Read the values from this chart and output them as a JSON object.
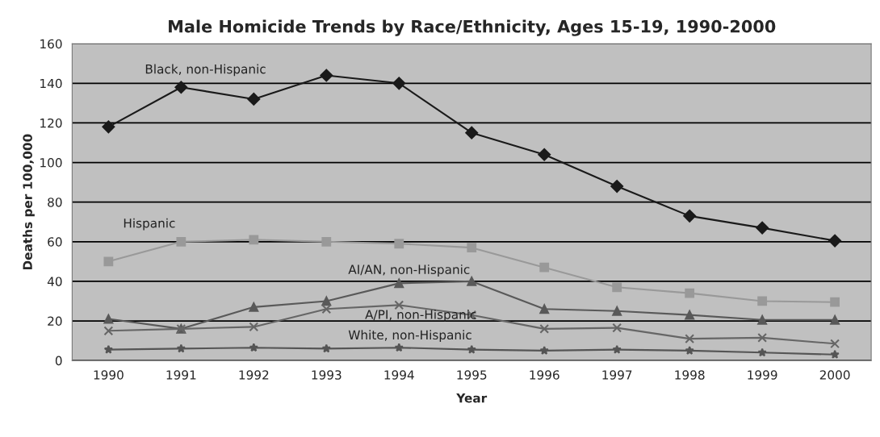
{
  "chart_data": {
    "type": "line",
    "title": "Male Homicide Trends by Race/Ethnicity, Ages 15-19, 1990-2000",
    "xlabel": "Year",
    "ylabel": "Deaths per 100,000",
    "categories": [
      "1990",
      "1991",
      "1992",
      "1993",
      "1994",
      "1995",
      "1996",
      "1997",
      "1998",
      "1999",
      "2000"
    ],
    "series": [
      {
        "name": "Black, non-Hispanic",
        "color": "#1a1a1a",
        "marker": "diamond",
        "values": [
          118,
          138,
          132,
          144,
          140,
          115,
          104,
          88,
          73,
          67,
          60.5
        ]
      },
      {
        "name": "Hispanic",
        "color": "#999999",
        "marker": "square",
        "values": [
          50,
          60,
          61,
          60,
          59,
          57,
          47,
          37,
          34,
          30,
          29.5
        ]
      },
      {
        "name": "AI/AN, non-Hispanic",
        "color": "#595959",
        "marker": "triangle",
        "values": [
          21,
          16,
          27,
          30,
          39,
          40,
          26,
          25,
          23,
          20.5,
          20.5
        ]
      },
      {
        "name": "A/PI, non-Hispanic",
        "color": "#666666",
        "marker": "cross",
        "values": [
          15,
          16,
          17,
          26,
          28,
          23,
          16,
          16.5,
          11,
          11.5,
          8.5
        ]
      },
      {
        "name": "White, non-Hispanic",
        "color": "#555555",
        "marker": "star",
        "values": [
          5.5,
          6,
          6.5,
          6,
          6.5,
          5.5,
          5,
          5.5,
          5,
          4,
          3
        ]
      }
    ],
    "ylim": [
      0,
      160
    ],
    "yticks": [
      0,
      20,
      40,
      60,
      80,
      100,
      120,
      140,
      160
    ],
    "grid": "y",
    "legend": false
  }
}
